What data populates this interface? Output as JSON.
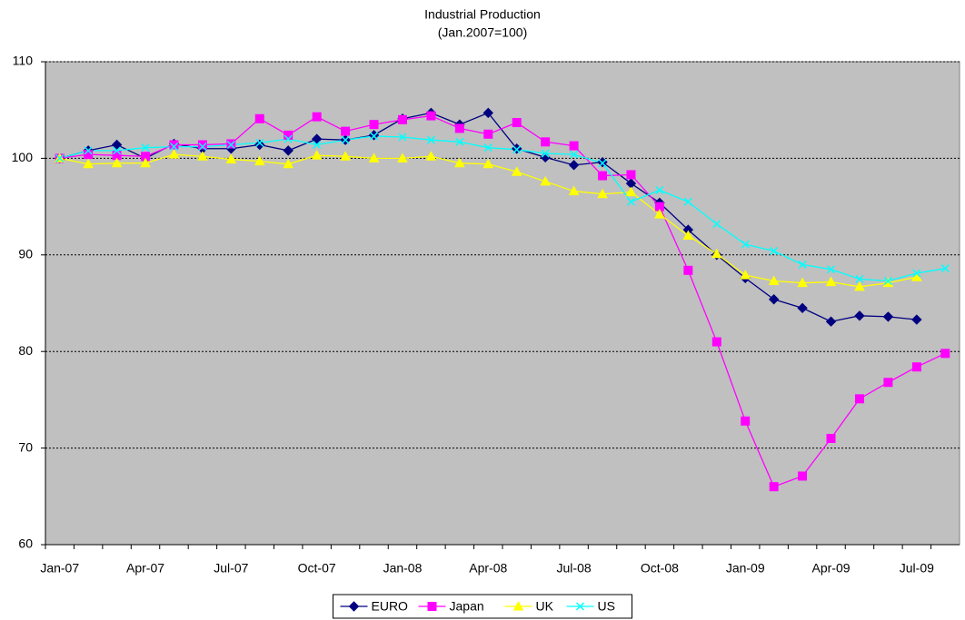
{
  "chart_data": {
    "type": "line",
    "title": "Industrial Production",
    "subtitle": "(Jan.2007=100)",
    "categories": [
      "Jan-07",
      null,
      null,
      "Apr-07",
      null,
      null,
      "Jul-07",
      null,
      null,
      "Oct-07",
      null,
      null,
      "Jan-08",
      null,
      null,
      "Apr-08",
      null,
      null,
      "Jul-08",
      null,
      null,
      "Oct-08",
      null,
      null,
      "Jan-09",
      null,
      null,
      "Apr-09",
      null,
      null,
      "Jul-09",
      null
    ],
    "series": [
      {
        "name": "EURO",
        "color": "#000080",
        "marker": "diamond",
        "values": [
          100,
          100.8,
          101.4,
          100,
          101.5,
          101,
          101,
          101.4,
          100.8,
          102,
          101.9,
          102.4,
          104.1,
          104.7,
          103.5,
          104.7,
          101,
          100.1,
          99.3,
          99.6,
          97.4,
          95.4,
          92.6,
          90,
          87.6,
          85.4,
          84.5,
          83.1,
          83.7,
          83.6,
          83.3,
          null
        ]
      },
      {
        "name": "Japan",
        "color": "#ff00ff",
        "marker": "square",
        "values": [
          100,
          100.4,
          100.3,
          100.2,
          101.4,
          101.4,
          101.5,
          104.1,
          102.4,
          104.3,
          102.8,
          103.5,
          104,
          104.4,
          103.1,
          102.5,
          103.7,
          101.7,
          101.3,
          98.2,
          98.3,
          95,
          88.4,
          81,
          72.8,
          66,
          67.1,
          71,
          75.1,
          76.8,
          78.4,
          79.8
        ]
      },
      {
        "name": "UK",
        "color": "#ffff00",
        "marker": "triangle",
        "values": [
          100,
          99.4,
          99.5,
          99.5,
          100.4,
          100.2,
          99.9,
          99.7,
          99.4,
          100.3,
          100.2,
          100,
          100,
          100.2,
          99.5,
          99.4,
          98.6,
          97.6,
          96.6,
          96.3,
          96.5,
          94.2,
          92,
          90.1,
          87.9,
          87.3,
          87.1,
          87.2,
          86.7,
          87.1,
          87.7,
          null
        ]
      },
      {
        "name": "US",
        "color": "#00ffff",
        "marker": "x",
        "values": [
          100,
          100.8,
          100.8,
          101.1,
          101.2,
          101.2,
          101.4,
          101.6,
          102,
          101.4,
          101.9,
          102.3,
          102.2,
          101.9,
          101.7,
          101.1,
          100.9,
          100.5,
          100.4,
          99.5,
          95.5,
          96.7,
          95.5,
          93.2,
          91.1,
          90.4,
          89,
          88.5,
          87.5,
          87.3,
          88.1,
          88.6
        ]
      }
    ],
    "ylim": [
      60,
      110
    ],
    "yticks": [
      60,
      70,
      80,
      90,
      100,
      110
    ],
    "grid": true,
    "legend": "bottom",
    "plot_background": "#c0c0c0"
  }
}
